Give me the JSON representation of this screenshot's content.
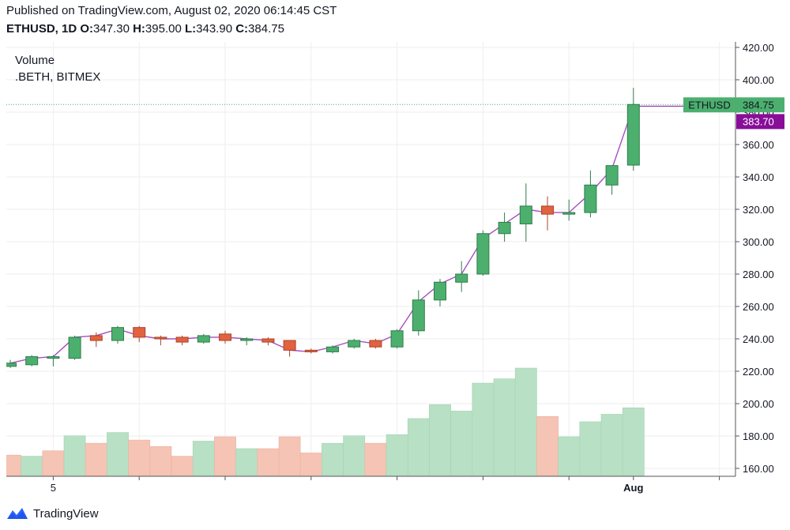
{
  "header": {
    "published": "Published on TradingView.com, August 02, 2020 06:14:45 CST",
    "symbol": "ETHUSD, 1D",
    "o_label": "O:",
    "o_value": "347.30",
    "h_label": "H:",
    "h_value": "395.00",
    "l_label": "L:",
    "l_value": "343.90",
    "c_label": "C:",
    "c_value": "384.75"
  },
  "overlay": {
    "title": "Volume",
    "subtitle": ".BETH, BITMEX"
  },
  "price_labels": {
    "symbol_tag": "ETHUSD",
    "last_price": "384.75",
    "index_price": "383.70",
    "last_value": 384.75,
    "index_value": 383.7
  },
  "footer": {
    "brand": "TradingView"
  },
  "colors": {
    "up": "#4caf6e",
    "down": "#e2623f",
    "up_volume": "#b8e0c4",
    "down_volume": "#f5c4b4",
    "index_line": "#a64fc0",
    "index_tag": "#880e98",
    "grid": "#eeeeee"
  },
  "chart_data": {
    "type": "candlestick",
    "y_axis": {
      "min": 155,
      "max": 422,
      "ticks": [
        160,
        180,
        200,
        220,
        240,
        260,
        280,
        300,
        320,
        340,
        360,
        380,
        400,
        420
      ]
    },
    "x_axis": {
      "labels": [
        {
          "label": "5",
          "index": 2
        },
        {
          "label": "Aug",
          "index": 29
        }
      ],
      "grid_indices": [
        2,
        6,
        10,
        14,
        18,
        22,
        26,
        29,
        33
      ]
    },
    "candles": [
      {
        "o": 223,
        "h": 227,
        "l": 222,
        "c": 225
      },
      {
        "o": 224,
        "h": 230,
        "l": 223,
        "c": 229
      },
      {
        "o": 228,
        "h": 230,
        "l": 223,
        "c": 229
      },
      {
        "o": 228,
        "h": 242,
        "l": 227,
        "c": 241
      },
      {
        "o": 242,
        "h": 244,
        "l": 235,
        "c": 239
      },
      {
        "o": 239,
        "h": 248,
        "l": 237,
        "c": 247
      },
      {
        "o": 247,
        "h": 248,
        "l": 238,
        "c": 241
      },
      {
        "o": 241,
        "h": 242,
        "l": 236,
        "c": 240
      },
      {
        "o": 241,
        "h": 242,
        "l": 236,
        "c": 238
      },
      {
        "o": 238,
        "h": 243,
        "l": 237,
        "c": 242
      },
      {
        "o": 243,
        "h": 245,
        "l": 237,
        "c": 239
      },
      {
        "o": 239,
        "h": 241,
        "l": 236,
        "c": 240
      },
      {
        "o": 240,
        "h": 241,
        "l": 236,
        "c": 238
      },
      {
        "o": 239,
        "h": 239,
        "l": 229,
        "c": 233
      },
      {
        "o": 233,
        "h": 234,
        "l": 231,
        "c": 232
      },
      {
        "o": 232,
        "h": 236,
        "l": 231,
        "c": 235
      },
      {
        "o": 235,
        "h": 240,
        "l": 234,
        "c": 239
      },
      {
        "o": 239,
        "h": 240,
        "l": 234,
        "c": 235
      },
      {
        "o": 235,
        "h": 246,
        "l": 234,
        "c": 245
      },
      {
        "o": 245,
        "h": 270,
        "l": 242,
        "c": 264
      },
      {
        "o": 264,
        "h": 277,
        "l": 260,
        "c": 275
      },
      {
        "o": 275,
        "h": 288,
        "l": 269,
        "c": 280
      },
      {
        "o": 280,
        "h": 307,
        "l": 279,
        "c": 305
      },
      {
        "o": 305,
        "h": 318,
        "l": 300,
        "c": 312
      },
      {
        "o": 311,
        "h": 336,
        "l": 300,
        "c": 322
      },
      {
        "o": 322,
        "h": 328,
        "l": 307,
        "c": 317
      },
      {
        "o": 317,
        "h": 326,
        "l": 313,
        "c": 318
      },
      {
        "o": 318,
        "h": 344,
        "l": 315,
        "c": 335
      },
      {
        "o": 335,
        "h": 347,
        "l": 329,
        "c": 347
      },
      {
        "o": 347.3,
        "h": 395,
        "l": 343.9,
        "c": 384.75
      }
    ],
    "index_line": [
      225,
      228,
      229,
      241,
      242,
      246,
      242,
      240,
      240,
      241,
      241,
      240,
      239,
      233,
      232,
      235,
      239,
      237,
      243,
      263,
      274,
      280,
      302,
      311,
      320,
      318,
      318,
      330,
      345,
      383.7
    ],
    "volume": {
      "direction": [
        "down",
        "up",
        "down",
        "up",
        "down",
        "up",
        "down",
        "down",
        "down",
        "up",
        "down",
        "up",
        "down",
        "down",
        "down",
        "up",
        "up",
        "down",
        "up",
        "up",
        "up",
        "up",
        "up",
        "up",
        "up",
        "down",
        "up",
        "up",
        "up",
        "up"
      ],
      "relative": [
        0.19,
        0.18,
        0.23,
        0.37,
        0.3,
        0.4,
        0.33,
        0.27,
        0.18,
        0.32,
        0.36,
        0.25,
        0.25,
        0.36,
        0.21,
        0.3,
        0.37,
        0.3,
        0.38,
        0.53,
        0.66,
        0.6,
        0.86,
        0.9,
        1.0,
        0.55,
        0.36,
        0.5,
        0.57,
        0.63
      ]
    }
  }
}
